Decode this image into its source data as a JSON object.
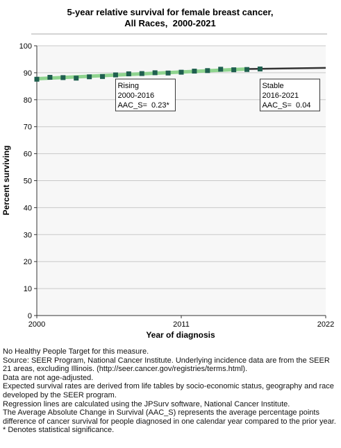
{
  "chart_data": {
    "type": "line-points",
    "title": [
      "5-year relative survival for female breast cancer,",
      "All Races,  2000-2021"
    ],
    "x_label": "Year of diagnosis",
    "y_label": "Percent surviving",
    "xlim": [
      2000,
      2022
    ],
    "xticks": [
      2000,
      2011,
      2022
    ],
    "ylim": [
      0,
      100
    ],
    "yticks": [
      0,
      10,
      20,
      30,
      40,
      50,
      60,
      70,
      80,
      90,
      100
    ],
    "grid": true,
    "marker_color": "#1f5f4f",
    "x": [
      2000,
      2001,
      2002,
      2003,
      2004,
      2005,
      2006,
      2007,
      2008,
      2009,
      2010,
      2011,
      2012,
      2013,
      2014,
      2015,
      2016,
      2017
    ],
    "values": [
      87.6,
      88.3,
      88.2,
      88.0,
      88.5,
      88.6,
      89.2,
      89.6,
      89.7,
      90.0,
      89.9,
      90.2,
      90.6,
      90.8,
      91.3,
      91.1,
      91.2,
      91.4
    ],
    "segments": [
      {
        "x": [
          2000,
          2016
        ],
        "values": [
          87.8,
          91.4
        ],
        "color": "#8fd48f"
      },
      {
        "x": [
          2016,
          2022
        ],
        "values": [
          91.4,
          91.8
        ],
        "color": "#333333"
      }
    ],
    "annotations": [
      {
        "x": 2006,
        "lines": [
          "Rising",
          "2000-2016",
          "AAC_S=  0.23*"
        ]
      },
      {
        "x": 2017,
        "lines": [
          "Stable",
          "2016-2021",
          "AAC_S=  0.04"
        ]
      }
    ]
  },
  "notes": [
    "No Healthy People Target for this measure.",
    "Source: SEER Program, National Cancer Institute. Underlying incidence data are from the SEER 21 areas, excluding Illinois. (http://seer.cancer.gov/registries/terms.html).",
    "Data are not age-adjusted.",
    "Expected survival rates are derived from life tables by socio-economic status, geography and race developed by the SEER program.",
    "Regression lines are calculated using the JPSurv software, National Cancer Institute.",
    "The Average Absolute Change in Survival (AAC_S) represents the average percentage points difference of cancer survival for people diagnosed in one calendar year compared to the prior year.",
    "* Denotes statistical significance."
  ]
}
